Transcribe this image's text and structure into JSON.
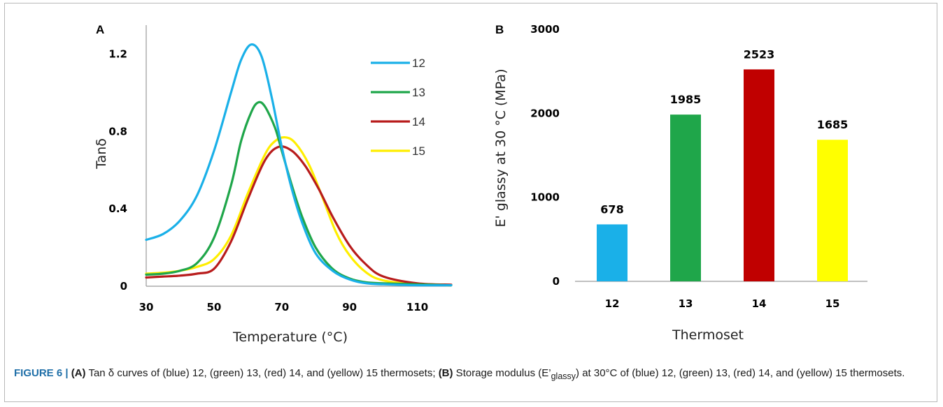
{
  "panels": {
    "a_letter": "A",
    "b_letter": "B"
  },
  "chart_data": [
    {
      "type": "line",
      "panel": "A",
      "xlabel": "Temperature (°C)",
      "ylabel": "Tanδ",
      "xlim": [
        30,
        120
      ],
      "ylim": [
        0,
        1.35
      ],
      "x_ticks": [
        30,
        50,
        70,
        90,
        110
      ],
      "y_ticks": [
        0,
        0.4,
        0.8,
        1.2
      ],
      "y_tick_labels": [
        "0",
        "0.4",
        "0.8",
        "1.2"
      ],
      "legend_position": "top-right",
      "series": [
        {
          "name": "12",
          "color": "#1ab0e8",
          "x": [
            30,
            35,
            40,
            45,
            50,
            55,
            58,
            61,
            64,
            67,
            70,
            73,
            76,
            80,
            85,
            90,
            95,
            100,
            110,
            120
          ],
          "y": [
            0.24,
            0.27,
            0.34,
            0.47,
            0.7,
            1.0,
            1.17,
            1.25,
            1.19,
            0.98,
            0.72,
            0.5,
            0.33,
            0.17,
            0.08,
            0.035,
            0.015,
            0.01,
            0.005,
            0.005
          ]
        },
        {
          "name": "13",
          "color": "#1fa64a",
          "x": [
            30,
            35,
            40,
            45,
            50,
            55,
            58,
            61,
            63,
            65,
            68,
            70,
            73,
            76,
            80,
            85,
            90,
            95,
            100,
            110,
            120
          ],
          "y": [
            0.06,
            0.065,
            0.08,
            0.12,
            0.25,
            0.52,
            0.75,
            0.9,
            0.95,
            0.93,
            0.82,
            0.7,
            0.52,
            0.36,
            0.2,
            0.09,
            0.04,
            0.02,
            0.015,
            0.01,
            0.005
          ]
        },
        {
          "name": "14",
          "color": "#b81c1c",
          "x": [
            30,
            35,
            40,
            45,
            50,
            55,
            60,
            65,
            69,
            73,
            77,
            81,
            85,
            90,
            95,
            100,
            110,
            120
          ],
          "y": [
            0.045,
            0.05,
            0.055,
            0.065,
            0.09,
            0.23,
            0.45,
            0.65,
            0.72,
            0.7,
            0.62,
            0.5,
            0.36,
            0.21,
            0.11,
            0.05,
            0.015,
            0.008
          ]
        },
        {
          "name": "15",
          "color": "#ffee00",
          "x": [
            30,
            35,
            40,
            45,
            50,
            55,
            60,
            65,
            68,
            71,
            74,
            78,
            82,
            86,
            90,
            95,
            100,
            110,
            120
          ],
          "y": [
            0.065,
            0.07,
            0.08,
            0.1,
            0.14,
            0.26,
            0.48,
            0.68,
            0.75,
            0.77,
            0.74,
            0.63,
            0.46,
            0.28,
            0.16,
            0.07,
            0.03,
            0.01,
            0.005
          ]
        }
      ]
    },
    {
      "type": "bar",
      "panel": "B",
      "xlabel": "Thermoset",
      "ylabel": "E' glassy at 30 °C (MPa)",
      "ylim": [
        0,
        3000
      ],
      "y_ticks": [
        0,
        1000,
        2000,
        3000
      ],
      "categories": [
        "12",
        "13",
        "14",
        "15"
      ],
      "values": [
        678,
        1985,
        2523,
        1685
      ],
      "data_labels": [
        "678",
        "1985",
        "2523",
        "1685"
      ],
      "colors": [
        "#1ab0e8",
        "#1fa64a",
        "#c00000",
        "#ffff00"
      ]
    }
  ],
  "caption": {
    "figure_label": "FIGURE 6 |",
    "a_marker": "(A)",
    "a_text": " Tan δ curves of (blue) 12, (green) 13, (red) 14, and (yellow) 15 thermosets; ",
    "b_marker": "(B)",
    "b_text_1": " Storage modulus (E’",
    "b_subscript": "glassy",
    "b_text_2": ") at 30°C of (blue) 12, (green) 13, (red) 14, and (yellow) 15 thermosets."
  }
}
